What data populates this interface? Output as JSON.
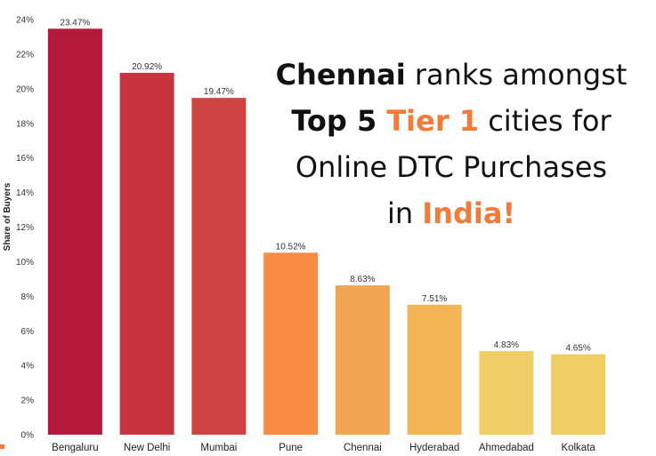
{
  "chart_data": {
    "type": "bar",
    "categories": [
      "Bengaluru",
      "New Delhi",
      "Mumbai",
      "Pune",
      "Chennai",
      "Hyderabad",
      "Ahmedabad",
      "Kolkata"
    ],
    "values": [
      23.47,
      20.92,
      19.47,
      10.52,
      8.63,
      7.51,
      4.83,
      4.65
    ],
    "data_labels": [
      "23.47%",
      "20.92%",
      "19.47%",
      "10.52%",
      "8.63%",
      "7.51%",
      "4.83%",
      "4.65%"
    ],
    "bar_colors": [
      "#b51a3c",
      "#c8333f",
      "#cf4343",
      "#f98c45",
      "#f2a550",
      "#f3b457",
      "#f0cd65",
      "#f0cd65"
    ],
    "ylabel": "Share of Buyers",
    "ylim": [
      0,
      24
    ],
    "yticks": [
      0,
      2,
      4,
      6,
      8,
      10,
      12,
      14,
      16,
      18,
      20,
      22,
      24
    ],
    "ytick_labels": [
      "0%",
      "2%",
      "4%",
      "6%",
      "8%",
      "10%",
      "12%",
      "14%",
      "16%",
      "18%",
      "20%",
      "22%",
      "24%"
    ],
    "grid": false
  },
  "headline": {
    "line1_bold": "Chennai",
    "line1_rest": " ranks amongst",
    "line2_bold": "Top 5 ",
    "line2_accent": "Tier 1",
    "line2_rest": " cities for",
    "line3": "Online DTC Purchases",
    "line4_start": "in ",
    "line4_accent": "India!"
  },
  "colors": {
    "accent": "#f47a3a",
    "text": "#111111",
    "corner_mark": "#f47a3a"
  }
}
